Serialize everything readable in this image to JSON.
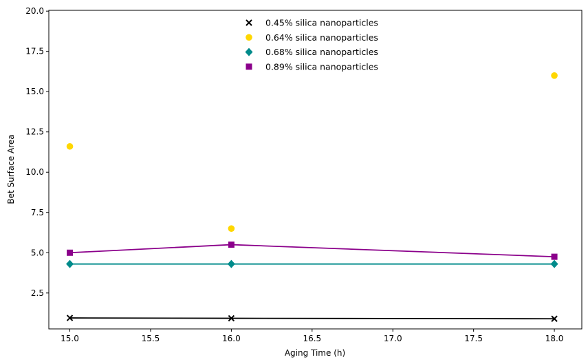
{
  "chart_data": {
    "type": "scatter",
    "title": "",
    "xlabel": "Aging Time (h)",
    "ylabel": "Bet Surface Area",
    "xlim": [
      14.87,
      18.17
    ],
    "ylim": [
      0.27,
      20.05
    ],
    "xticks": [
      "15.0",
      "15.5",
      "16.0",
      "16.5",
      "17.0",
      "17.5",
      "18.0"
    ],
    "yticks": [
      "2.5",
      "5.0",
      "7.5",
      "10.0",
      "12.5",
      "15.0",
      "17.5",
      "20.0"
    ],
    "grid": false,
    "legend_position": "top-center",
    "series": [
      {
        "name": "0.45% silica nanoparticles",
        "marker": "x",
        "color": "#000000",
        "line": true,
        "x": [
          15,
          16,
          18
        ],
        "y": [
          0.95,
          0.93,
          0.9
        ]
      },
      {
        "name": "0.64% silica nanoparticles",
        "marker": "circle",
        "color": "#FFD700",
        "line": false,
        "x": [
          15,
          16,
          18
        ],
        "y": [
          11.6,
          6.5,
          16.0
        ]
      },
      {
        "name": "0.68% silica nanoparticles",
        "marker": "diamond",
        "color": "#008B8B",
        "line": true,
        "x": [
          15,
          16,
          18
        ],
        "y": [
          4.3,
          4.3,
          4.3
        ]
      },
      {
        "name": "0.89% silica nanoparticles",
        "marker": "square",
        "color": "#8B008B",
        "line": true,
        "x": [
          15,
          16,
          18
        ],
        "y": [
          5.0,
          5.5,
          4.75
        ]
      }
    ]
  }
}
